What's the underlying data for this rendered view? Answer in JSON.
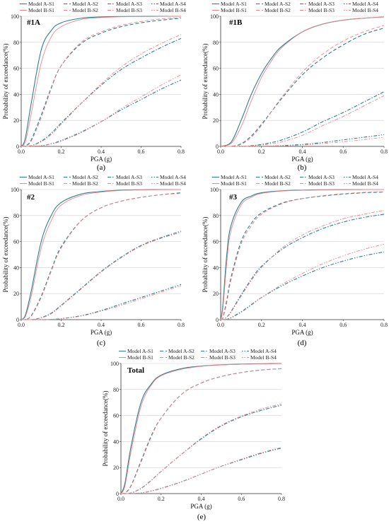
{
  "figure": {
    "colors": {
      "A": "#2e7d8f",
      "B": "#e6878a",
      "grid": "#cfcfcf",
      "axis": "#333333"
    },
    "legend_labels": [
      "Model A-S1",
      "Model A-S2",
      "Model A-S3",
      "Model A-S4",
      "Model B-S1",
      "Model B-S2",
      "Model B-S3",
      "Model B-S4"
    ]
  },
  "chart_data": [
    {
      "type": "line",
      "panel_label": "#1A",
      "caption": "(a)",
      "xlabel": "PGA (g)",
      "ylabel": "Probability of exceedance(%)",
      "xlim": [
        0,
        0.8
      ],
      "ylim": [
        0,
        100
      ],
      "xticks": [
        "0.0",
        "0.2",
        "0.4",
        "0.6",
        "0.8"
      ],
      "yticks": [
        "0",
        "20",
        "40",
        "60",
        "80",
        "100"
      ],
      "x": [
        0,
        0.02,
        0.05,
        0.1,
        0.15,
        0.2,
        0.3,
        0.4,
        0.5,
        0.6,
        0.7,
        0.8
      ],
      "series": [
        {
          "name": "Model A-S1",
          "values": [
            0,
            6,
            33,
            74,
            89,
            95,
            98.5,
            99.5,
            99.8,
            99.9,
            100,
            100
          ]
        },
        {
          "name": "Model A-S2",
          "values": [
            0,
            0.5,
            5,
            24,
            45,
            62,
            79,
            87,
            92,
            95,
            97,
            98.5
          ]
        },
        {
          "name": "Model A-S3",
          "values": [
            0,
            0,
            0.5,
            4,
            10,
            18,
            33,
            47,
            59,
            68,
            76,
            83
          ]
        },
        {
          "name": "Model A-S4",
          "values": [
            0,
            0,
            0,
            0.5,
            2,
            4.5,
            11,
            19,
            28,
            36,
            44,
            51
          ]
        },
        {
          "name": "Model B-S1",
          "values": [
            0,
            3,
            25,
            64,
            84,
            92,
            97.5,
            99,
            99.6,
            99.8,
            99.9,
            100
          ]
        },
        {
          "name": "Model B-S2",
          "values": [
            0,
            0.3,
            4,
            22,
            44,
            62,
            80,
            88,
            93,
            96,
            98,
            99
          ]
        },
        {
          "name": "Model B-S3",
          "values": [
            0,
            0,
            0.4,
            3.5,
            9,
            17,
            33,
            48,
            61,
            71,
            79,
            86
          ]
        },
        {
          "name": "Model B-S4",
          "values": [
            0,
            0,
            0,
            0.4,
            1.8,
            4,
            10.5,
            19,
            29,
            38,
            47,
            55
          ]
        }
      ]
    },
    {
      "type": "line",
      "panel_label": "#1B",
      "caption": "(b)",
      "xlabel": "PGA (g)",
      "ylabel": "Probability of exceedance(%)",
      "xlim": [
        0,
        0.8
      ],
      "ylim": [
        0,
        100
      ],
      "xticks": [
        "0.0",
        "0.2",
        "0.4",
        "0.6",
        "0.8"
      ],
      "yticks": [
        "0",
        "20",
        "40",
        "60",
        "80",
        "100"
      ],
      "x": [
        0,
        0.05,
        0.1,
        0.15,
        0.2,
        0.25,
        0.3,
        0.4,
        0.5,
        0.6,
        0.7,
        0.8
      ],
      "series": [
        {
          "name": "Model A-S1",
          "values": [
            0,
            3,
            20,
            40,
            56,
            68,
            77,
            88,
            94,
            97,
            98.5,
            99.5
          ]
        },
        {
          "name": "Model A-S2",
          "values": [
            0,
            0,
            2,
            8,
            17,
            27,
            37,
            55,
            68,
            78,
            86,
            91
          ]
        },
        {
          "name": "Model A-S3",
          "values": [
            0,
            0,
            0,
            0.5,
            1.5,
            3,
            5,
            11,
            19,
            26,
            34,
            42
          ]
        },
        {
          "name": "Model A-S4",
          "values": [
            0,
            0,
            0,
            0,
            0.1,
            0.3,
            0.6,
            1.5,
            3,
            5,
            7,
            9
          ]
        },
        {
          "name": "Model B-S1",
          "values": [
            0,
            2,
            15,
            35,
            53,
            66,
            76,
            88,
            94,
            97,
            98.5,
            99.5
          ]
        },
        {
          "name": "Model B-S2",
          "values": [
            0,
            0,
            1.5,
            7,
            16,
            27,
            38,
            57,
            71,
            81,
            88,
            93
          ]
        },
        {
          "name": "Model B-S3",
          "values": [
            0,
            0,
            0,
            0.3,
            1,
            2,
            3.5,
            8.5,
            16,
            23,
            31,
            39
          ]
        },
        {
          "name": "Model B-S4",
          "values": [
            0,
            0,
            0,
            0,
            0.05,
            0.2,
            0.4,
            1,
            2.2,
            3.5,
            5.2,
            7
          ]
        }
      ]
    },
    {
      "type": "line",
      "panel_label": "#2",
      "caption": "(c)",
      "xlabel": "PGA (g)",
      "ylabel": "Probability of exceedance(%)",
      "xlim": [
        0,
        0.8
      ],
      "ylim": [
        0,
        100
      ],
      "xticks": [
        "0.0",
        "0.2",
        "0.4",
        "0.6",
        "0.8"
      ],
      "yticks": [
        "0",
        "20",
        "40",
        "60",
        "80",
        "100"
      ],
      "x": [
        0,
        0.02,
        0.05,
        0.1,
        0.15,
        0.2,
        0.3,
        0.4,
        0.5,
        0.6,
        0.7,
        0.8
      ],
      "series": [
        {
          "name": "Model A-S1",
          "values": [
            0,
            3,
            22,
            60,
            80,
            90,
            96.5,
            98.5,
            99.5,
            99.8,
            100,
            100
          ]
        },
        {
          "name": "Model A-S2",
          "values": [
            0,
            0,
            3,
            18,
            38,
            56,
            76,
            86,
            91,
            94,
            96,
            97.5
          ]
        },
        {
          "name": "Model A-S3",
          "values": [
            0,
            0,
            0,
            1.5,
            5,
            11,
            24,
            37,
            48,
            57,
            63,
            68
          ]
        },
        {
          "name": "Model A-S4",
          "values": [
            0,
            0,
            0,
            0,
            0.2,
            0.8,
            3,
            7,
            12,
            17,
            22,
            27
          ]
        },
        {
          "name": "Model B-S1",
          "values": [
            0,
            2,
            18,
            55,
            76,
            88,
            95.5,
            98,
            99.3,
            99.7,
            99.9,
            100
          ]
        },
        {
          "name": "Model B-S2",
          "values": [
            0,
            0,
            2.5,
            17,
            37,
            55,
            76,
            86,
            91,
            94,
            96,
            97
          ]
        },
        {
          "name": "Model B-S3",
          "values": [
            0,
            0,
            0,
            1.3,
            4.5,
            10.5,
            23.5,
            36.5,
            47.5,
            56.5,
            62.5,
            67
          ]
        },
        {
          "name": "Model B-S4",
          "values": [
            0,
            0,
            0,
            0,
            0.15,
            0.7,
            2.7,
            6.5,
            11,
            16,
            21,
            26
          ]
        }
      ]
    },
    {
      "type": "line",
      "panel_label": "#3",
      "caption": "(d)",
      "xlabel": "PGA (g)",
      "ylabel": "Probability of exceedance(%)",
      "xlim": [
        0,
        0.8
      ],
      "ylim": [
        0,
        100
      ],
      "xticks": [
        "0.0",
        "0.2",
        "0.4",
        "0.6",
        "0.8"
      ],
      "yticks": [
        "0",
        "20",
        "40",
        "60",
        "80",
        "100"
      ],
      "x": [
        0,
        0.01,
        0.03,
        0.05,
        0.1,
        0.15,
        0.2,
        0.3,
        0.4,
        0.5,
        0.6,
        0.7,
        0.8
      ],
      "series": [
        {
          "name": "Model A-S1",
          "values": [
            0,
            10,
            50,
            72,
            90,
            95,
            97.5,
            99,
            99.5,
            99.8,
            99.9,
            100,
            100
          ]
        },
        {
          "name": "Model A-S2",
          "values": [
            0,
            1,
            15,
            32,
            60,
            74,
            82,
            89.5,
            93,
            95,
            96.5,
            97.5,
            98
          ]
        },
        {
          "name": "Model A-S3",
          "values": [
            0,
            0,
            2,
            6,
            19,
            31,
            41,
            54,
            63,
            70,
            75,
            78.5,
            81
          ]
        },
        {
          "name": "Model A-S4",
          "values": [
            0,
            0,
            0.3,
            1.5,
            6,
            11.5,
            17,
            26,
            33.5,
            40,
            45,
            49,
            52
          ]
        },
        {
          "name": "Model B-S1",
          "values": [
            0,
            7,
            44,
            68,
            88,
            94,
            97,
            98.8,
            99.4,
            99.7,
            99.9,
            100,
            100
          ]
        },
        {
          "name": "Model B-S2",
          "values": [
            0,
            0.8,
            13,
            30,
            58,
            72,
            81,
            89,
            93,
            95.3,
            96.8,
            97.8,
            98.3
          ]
        },
        {
          "name": "Model B-S3",
          "values": [
            0,
            0,
            1.8,
            5.5,
            18,
            30,
            40,
            55,
            65,
            72,
            77.5,
            81,
            84
          ]
        },
        {
          "name": "Model B-S4",
          "values": [
            0,
            0,
            0.2,
            1.2,
            5.5,
            11,
            17,
            27,
            35.5,
            43,
            49,
            54,
            58
          ]
        }
      ]
    },
    {
      "type": "line",
      "panel_label": "Total",
      "caption": "(e)",
      "xlabel": "PGA (g)",
      "ylabel": "Probability of exceedance(%)",
      "xlim": [
        0,
        0.8
      ],
      "ylim": [
        0,
        100
      ],
      "xticks": [
        "0.0",
        "0.2",
        "0.4",
        "0.6",
        "0.8"
      ],
      "yticks": [
        "0",
        "20",
        "40",
        "60",
        "80",
        "100"
      ],
      "x": [
        0,
        0.02,
        0.05,
        0.1,
        0.15,
        0.2,
        0.3,
        0.4,
        0.5,
        0.6,
        0.7,
        0.8
      ],
      "series": [
        {
          "name": "Model A-S1",
          "values": [
            0,
            8,
            36,
            70,
            84,
            91,
            96,
            98,
            99,
            99.5,
            99.8,
            100
          ]
        },
        {
          "name": "Model A-S2",
          "values": [
            0,
            0.5,
            6,
            25,
            44,
            58,
            76,
            85,
            90,
            93,
            95,
            96
          ]
        },
        {
          "name": "Model A-S3",
          "values": [
            0,
            0,
            0.5,
            4,
            10,
            17,
            30,
            42,
            52,
            59,
            64,
            68
          ]
        },
        {
          "name": "Model A-S4",
          "values": [
            0,
            0,
            0,
            0.5,
            2,
            4,
            9,
            15,
            21,
            26,
            31,
            35
          ]
        },
        {
          "name": "Model B-S1",
          "values": [
            0,
            6,
            32,
            67,
            83,
            90.5,
            95.5,
            97.8,
            98.9,
            99.4,
            99.7,
            99.9
          ]
        },
        {
          "name": "Model B-S2",
          "values": [
            0,
            0.4,
            5.5,
            24,
            43,
            58,
            76,
            85,
            90,
            93,
            95,
            96
          ]
        },
        {
          "name": "Model B-S3",
          "values": [
            0,
            0,
            0.4,
            3.8,
            9.8,
            17,
            30,
            42.5,
            52.5,
            59.5,
            65,
            69
          ]
        },
        {
          "name": "Model B-S4",
          "values": [
            0,
            0,
            0,
            0.4,
            1.8,
            3.8,
            8.8,
            15,
            21,
            26.5,
            31.5,
            35.5
          ]
        }
      ]
    }
  ]
}
